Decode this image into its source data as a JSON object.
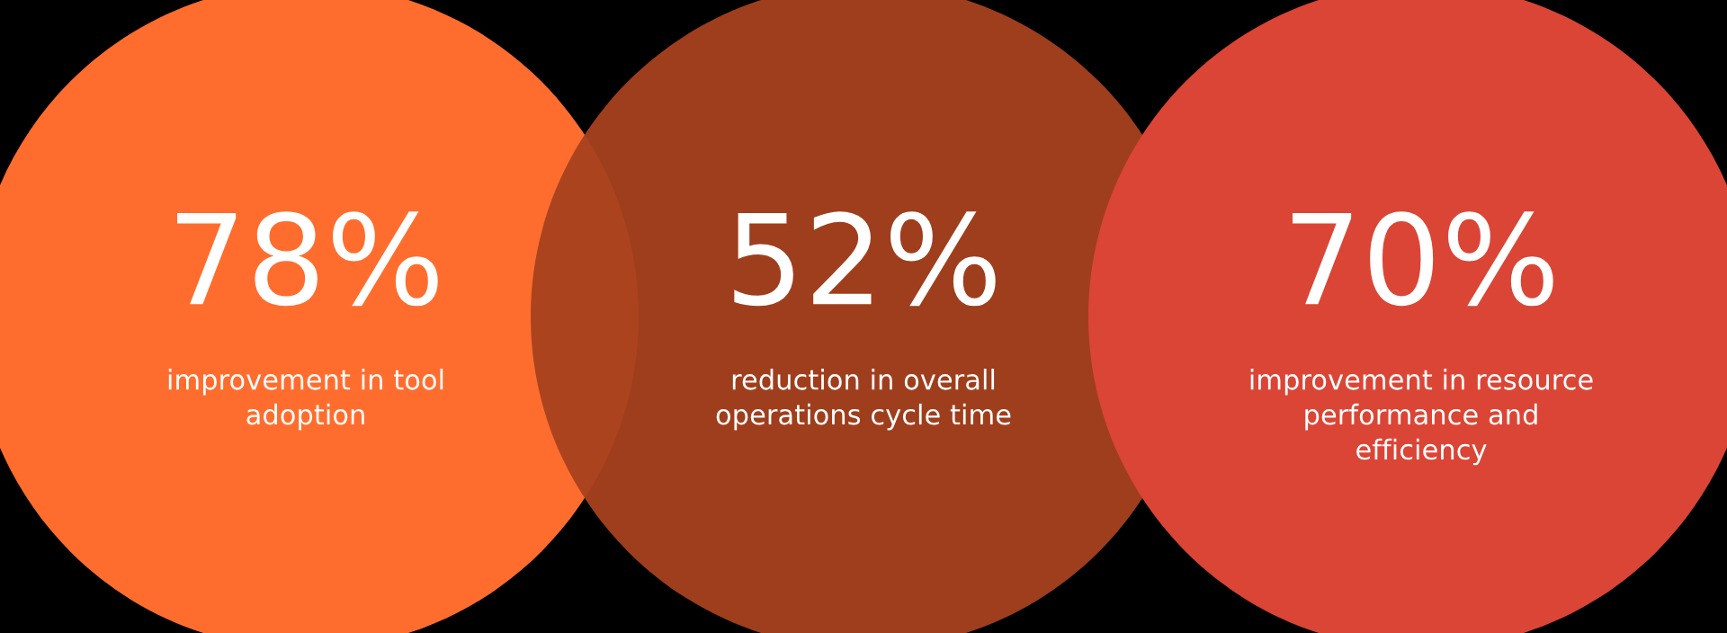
{
  "chart_data": {
    "type": "other",
    "categories": [
      "improvement in tool adoption",
      "reduction in overall operations cycle time",
      "improvement in resource performance and efficiency"
    ],
    "values": [
      78,
      52,
      70
    ],
    "value_labels": [
      "78%",
      "52%",
      "70%"
    ],
    "colors": [
      "#ff6d2e",
      "#a8411f",
      "#db4535"
    ]
  }
}
